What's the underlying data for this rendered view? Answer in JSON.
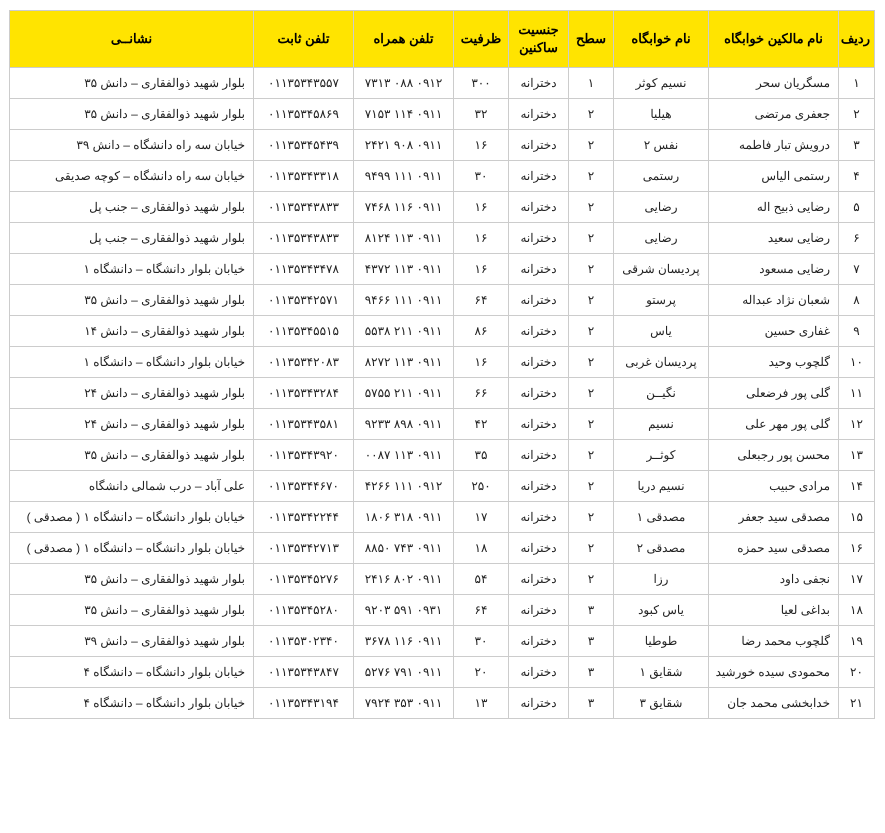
{
  "headers": {
    "row": "ردیف",
    "owner": "نام مالکین خوابگاه",
    "dorm": "نام خوابگاه",
    "level": "سطح",
    "gender": "جنسیت ساکنین",
    "capacity": "ظرفیت",
    "mobile": "تلفن همراه",
    "landline": "تلفن ثابت",
    "address": "نشانــی"
  },
  "style": {
    "header_bg": "#ffe400",
    "border_color": "#cccccc",
    "font_size_header": 13,
    "font_size_cell": 12
  },
  "rows": [
    {
      "n": "۱",
      "owner": "مسگریان سحر",
      "dorm": "نسیم کوثر",
      "lvl": "۱",
      "gen": "دخترانه",
      "cap": "۳۰۰",
      "mob": "۰۹۱۲ ۰۸۸ ۷۳۱۳",
      "lnd": "۰۱۱۳۵۳۴۳۵۵۷",
      "addr": "بلوار شهید ذوالفقاری – دانش ۳۵"
    },
    {
      "n": "۲",
      "owner": "جعفری مرتضی",
      "dorm": "هیلیا",
      "lvl": "۲",
      "gen": "دخترانه",
      "cap": "۳۲",
      "mob": "۰۹۱۱ ۱۱۴ ۷۱۵۳",
      "lnd": "۰۱۱۳۵۳۴۵۸۶۹",
      "addr": "بلوار شهید ذوالفقاری – دانش ۳۵"
    },
    {
      "n": "۳",
      "owner": "درویش تبار فاطمه",
      "dorm": "نفس ۲",
      "lvl": "۲",
      "gen": "دخترانه",
      "cap": "۱۶",
      "mob": "۰۹۱۱ ۹۰۸ ۲۴۲۱",
      "lnd": "۰۱۱۳۵۳۴۵۴۳۹",
      "addr": "خیابان سه راه دانشگاه – دانش ۳۹"
    },
    {
      "n": "۴",
      "owner": "رستمی الیاس",
      "dorm": "رستمی",
      "lvl": "۲",
      "gen": "دخترانه",
      "cap": "۳۰",
      "mob": "۰۹۱۱ ۱۱۱ ۹۴۹۹",
      "lnd": "۰۱۱۳۵۳۴۳۳۱۸",
      "addr": "خیابان سه راه دانشگاه – کوچه صدیقی"
    },
    {
      "n": "۵",
      "owner": "رضایی ذبیح اله",
      "dorm": "رضایی",
      "lvl": "۲",
      "gen": "دخترانه",
      "cap": "۱۶",
      "mob": "۰۹۱۱ ۱۱۶ ۷۴۶۸",
      "lnd": "۰۱۱۳۵۳۴۳۸۳۳",
      "addr": "بلوار شهید ذوالفقاری – جنب پل"
    },
    {
      "n": "۶",
      "owner": "رضایی سعید",
      "dorm": "رضایی",
      "lvl": "۲",
      "gen": "دخترانه",
      "cap": "۱۶",
      "mob": "۰۹۱۱ ۱۱۳ ۸۱۲۴",
      "lnd": "۰۱۱۳۵۳۴۳۸۳۳",
      "addr": "بلوار شهید ذوالفقاری – جنب پل"
    },
    {
      "n": "۷",
      "owner": "رضایی مسعود",
      "dorm": "پردیسان شرقی",
      "lvl": "۲",
      "gen": "دخترانه",
      "cap": "۱۶",
      "mob": "۰۹۱۱ ۱۱۳ ۴۳۷۲",
      "lnd": "۰۱۱۳۵۳۴۳۴۷۸",
      "addr": "خیابان بلوار دانشگاه – دانشگاه ۱"
    },
    {
      "n": "۸",
      "owner": "شعبان نژاد عبداله",
      "dorm": "پرستو",
      "lvl": "۲",
      "gen": "دخترانه",
      "cap": "۶۴",
      "mob": "۰۹۱۱ ۱۱۱ ۹۴۶۶",
      "lnd": "۰۱۱۳۵۳۴۲۵۷۱",
      "addr": "بلوار شهید ذوالفقاری – دانش ۳۵"
    },
    {
      "n": "۹",
      "owner": "غفاری حسین",
      "dorm": "یاس",
      "lvl": "۲",
      "gen": "دخترانه",
      "cap": "۸۶",
      "mob": "۰۹۱۱ ۲۱۱ ۵۵۳۸",
      "lnd": "۰۱۱۳۵۳۴۵۵۱۵",
      "addr": "بلوار شهید ذوالفقاری – دانش ۱۴"
    },
    {
      "n": "۱۰",
      "owner": "گلچوب وحید",
      "dorm": "پردیسان غربی",
      "lvl": "۲",
      "gen": "دخترانه",
      "cap": "۱۶",
      "mob": "۰۹۱۱ ۱۱۳ ۸۲۷۲",
      "lnd": "۰۱۱۳۵۳۴۲۰۸۳",
      "addr": "خیابان بلوار دانشگاه – دانشگاه ۱"
    },
    {
      "n": "۱۱",
      "owner": "گلی پور فرضعلی",
      "dorm": "نگیــن",
      "lvl": "۲",
      "gen": "دخترانه",
      "cap": "۶۶",
      "mob": "۰۹۱۱ ۲۱۱ ۵۷۵۵",
      "lnd": "۰۱۱۳۵۳۴۳۲۸۴",
      "addr": "بلوار شهید ذوالفقاری – دانش ۲۴"
    },
    {
      "n": "۱۲",
      "owner": "گلی پور مهر علی",
      "dorm": "نسیم",
      "lvl": "۲",
      "gen": "دخترانه",
      "cap": "۴۲",
      "mob": "۰۹۱۱ ۸۹۸ ۹۲۳۳",
      "lnd": "۰۱۱۳۵۳۴۳۵۸۱",
      "addr": "بلوار شهید ذوالفقاری – دانش ۲۴"
    },
    {
      "n": "۱۳",
      "owner": "محسن پور رجبعلی",
      "dorm": "کوثــر",
      "lvl": "۲",
      "gen": "دخترانه",
      "cap": "۳۵",
      "mob": "۰۹۱۱ ۱۱۳ ۰۰۸۷",
      "lnd": "۰۱۱۳۵۳۴۳۹۲۰",
      "addr": "بلوار شهید ذوالفقاری – دانش ۳۵"
    },
    {
      "n": "۱۴",
      "owner": "مرادی حبیب",
      "dorm": "نسیم دریا",
      "lvl": "۲",
      "gen": "دخترانه",
      "cap": "۲۵۰",
      "mob": "۰۹۱۲ ۱۱۱ ۴۲۶۶",
      "lnd": "۰۱۱۳۵۳۴۴۶۷۰",
      "addr": "علی آباد – درب شمالی دانشگاه"
    },
    {
      "n": "۱۵",
      "owner": "مصدقی سید جعفر",
      "dorm": "مصدقی ۱",
      "lvl": "۲",
      "gen": "دخترانه",
      "cap": "۱۷",
      "mob": "۰۹۱۱ ۳۱۸ ۱۸۰۶",
      "lnd": "۰۱۱۳۵۳۴۲۲۴۴",
      "addr": "خیابان بلوار دانشگاه – دانشگاه ۱ ( مصدقی )"
    },
    {
      "n": "۱۶",
      "owner": "مصدقی سید حمزه",
      "dorm": "مصدقی ۲",
      "lvl": "۲",
      "gen": "دخترانه",
      "cap": "۱۸",
      "mob": "۰۹۱۱ ۷۴۳ ۸۸۵۰",
      "lnd": "۰۱۱۳۵۳۴۲۷۱۳",
      "addr": "خیابان بلوار دانشگاه – دانشگاه ۱ ( مصدقی )"
    },
    {
      "n": "۱۷",
      "owner": "نجفی داود",
      "dorm": "رزا",
      "lvl": "۲",
      "gen": "دخترانه",
      "cap": "۵۴",
      "mob": "۰۹۱۱ ۸۰۲ ۲۴۱۶",
      "lnd": "۰۱۱۳۵۳۴۵۲۷۶",
      "addr": "بلوار شهید ذوالفقاری – دانش ۳۵"
    },
    {
      "n": "۱۸",
      "owner": "بداغی لعیا",
      "dorm": "یاس کبود",
      "lvl": "۳",
      "gen": "دخترانه",
      "cap": "۶۴",
      "mob": "۰۹۳۱ ۵۹۱ ۹۲۰۳",
      "lnd": "۰۱۱۳۵۳۴۵۲۸۰",
      "addr": "بلوار شهید ذوالفقاری – دانش ۳۵"
    },
    {
      "n": "۱۹",
      "owner": "گلچوب محمد رضا",
      "dorm": "طوطیا",
      "lvl": "۳",
      "gen": "دخترانه",
      "cap": "۳۰",
      "mob": "۰۹۱۱ ۱۱۶ ۳۶۷۸",
      "lnd": "۰۱۱۳۵۳۰۲۳۴۰",
      "addr": "بلوار شهید ذوالفقاری – دانش ۳۹"
    },
    {
      "n": "۲۰",
      "owner": "محمودی سیده خورشید",
      "dorm": "شقایق ۱",
      "lvl": "۳",
      "gen": "دخترانه",
      "cap": "۲۰",
      "mob": "۰۹۱۱ ۷۹۱ ۵۲۷۶",
      "lnd": "۰۱۱۳۵۳۴۳۸۴۷",
      "addr": "خیابان بلوار دانشگاه – دانشگاه ۴"
    },
    {
      "n": "۲۱",
      "owner": "خدابخشی محمد جان",
      "dorm": "شقایق ۳",
      "lvl": "۳",
      "gen": "دخترانه",
      "cap": "۱۳",
      "mob": "۰۹۱۱ ۳۵۳ ۷۹۲۴",
      "lnd": "۰۱۱۳۵۳۴۳۱۹۴",
      "addr": "خیابان بلوار دانشگاه – دانشگاه ۴"
    }
  ]
}
